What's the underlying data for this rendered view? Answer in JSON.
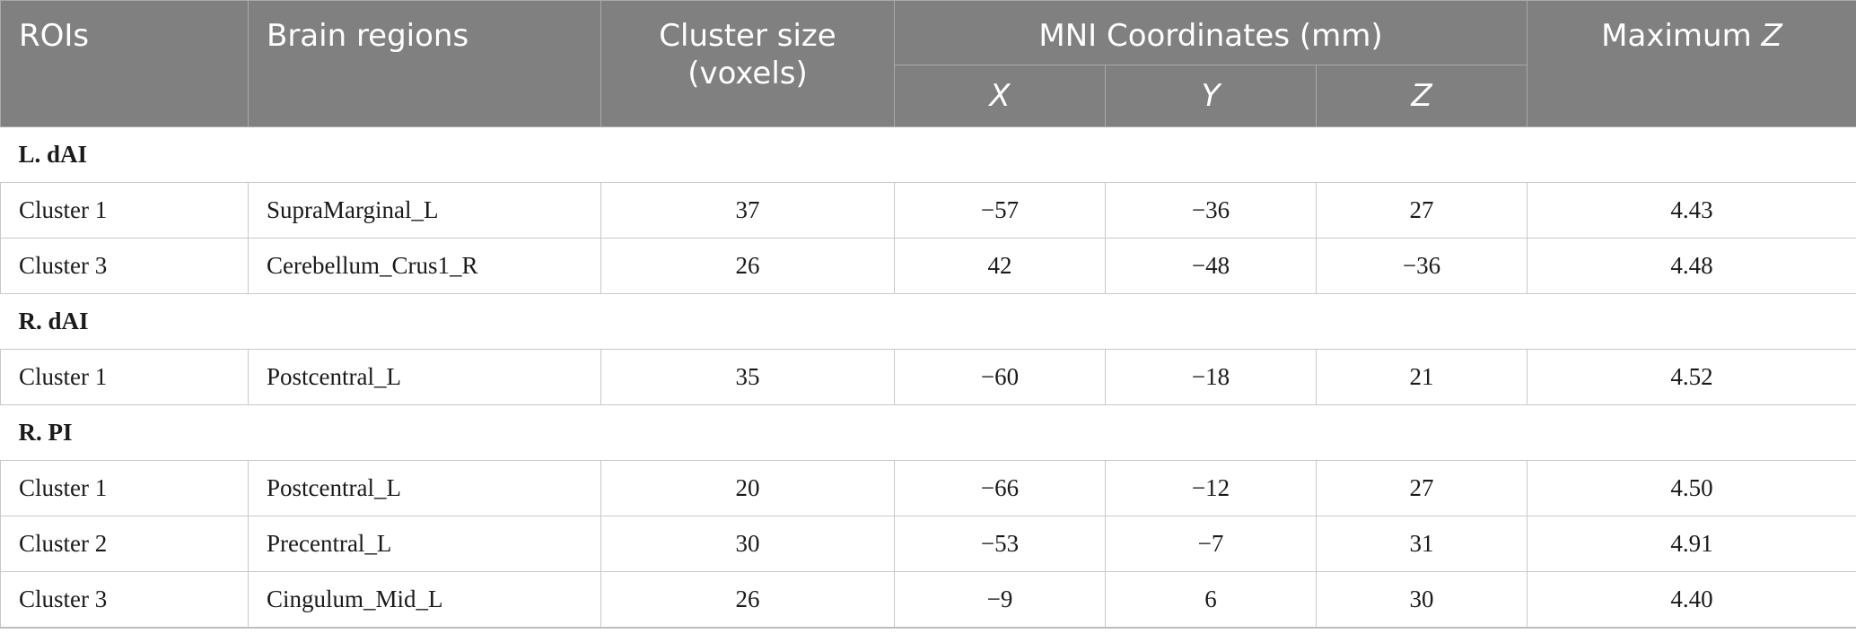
{
  "table": {
    "headers": {
      "rois": "ROIs",
      "brain_regions": "Brain regions",
      "cluster_size_line1": "Cluster size",
      "cluster_size_line2": "(voxels)",
      "mni": "MNI Coordinates (mm)",
      "x": "X",
      "y": "Y",
      "z": "Z",
      "max_z_prefix": "Maximum",
      "max_z_symbol": "Z"
    },
    "groups": [
      {
        "label": "L. dAI",
        "rows": [
          {
            "cluster": "Cluster 1",
            "region": "SupraMarginal_L",
            "size": "37",
            "x": "−57",
            "y": "−36",
            "z": "27",
            "maxz": "4.43"
          },
          {
            "cluster": "Cluster 3",
            "region": "Cerebellum_Crus1_R",
            "size": "26",
            "x": "42",
            "y": "−48",
            "z": "−36",
            "maxz": "4.48"
          }
        ]
      },
      {
        "label": "R. dAI",
        "rows": [
          {
            "cluster": "Cluster 1",
            "region": "Postcentral_L",
            "size": "35",
            "x": "−60",
            "y": "−18",
            "z": "21",
            "maxz": "4.52"
          }
        ]
      },
      {
        "label": "R. PI",
        "rows": [
          {
            "cluster": "Cluster 1",
            "region": "Postcentral_L",
            "size": "20",
            "x": "−66",
            "y": "−12",
            "z": "27",
            "maxz": "4.50"
          },
          {
            "cluster": "Cluster 2",
            "region": "Precentral_L",
            "size": "30",
            "x": "−53",
            "y": "−7",
            "z": "31",
            "maxz": "4.91"
          },
          {
            "cluster": "Cluster 3",
            "region": "Cingulum_Mid_L",
            "size": "26",
            "x": "−9",
            "y": "6",
            "z": "30",
            "maxz": "4.40"
          }
        ]
      }
    ]
  }
}
